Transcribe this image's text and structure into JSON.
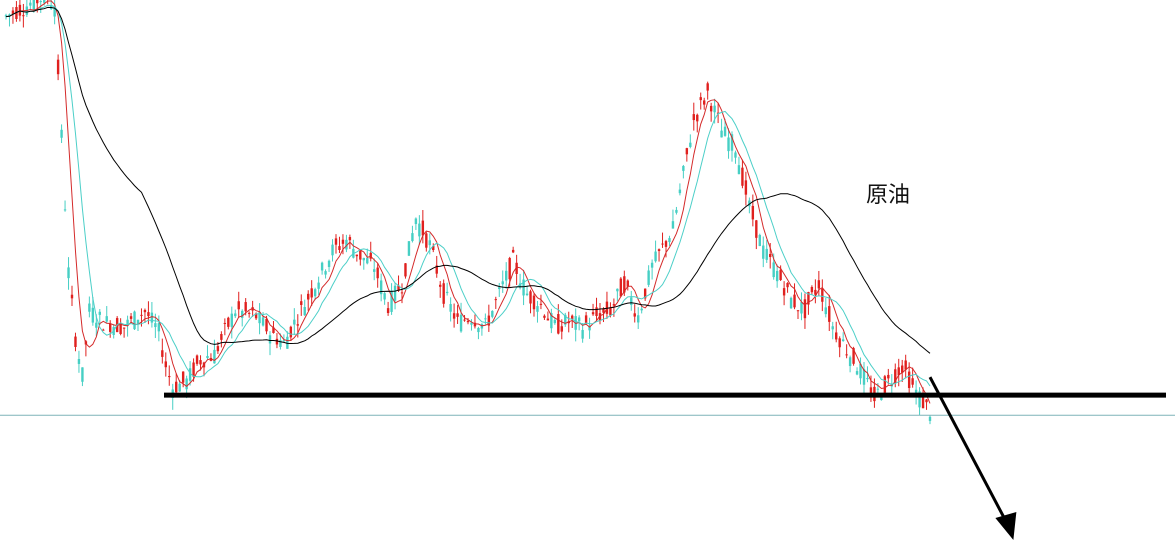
{
  "chart_data": {
    "type": "candlestick",
    "title": "",
    "xlabel": "",
    "ylabel": "",
    "annotation": "原油",
    "grid": false,
    "legend": "none",
    "colors": {
      "up": "#e0201e",
      "down": "#46cfc4",
      "ma_fast": "#d42a2a",
      "ma_mid": "#4ccfc8",
      "ma_slow": "#000000",
      "support": "#000000",
      "baseline": "#7fb3b8",
      "arrow": "#000000"
    },
    "ylim": [
      0,
      100
    ],
    "support_level": 27.5,
    "baseline_level": 23.8,
    "projection": {
      "from": {
        "x": 133,
        "y": 27.5
      },
      "to": {
        "x": 145,
        "y": 0
      }
    },
    "price_path": [
      [
        0,
        97
      ],
      [
        3,
        99
      ],
      [
        6,
        101
      ],
      [
        7,
        99
      ],
      [
        8,
        75
      ],
      [
        9,
        50
      ],
      [
        10,
        38
      ],
      [
        11,
        31
      ],
      [
        12,
        43
      ],
      [
        14,
        41
      ],
      [
        17,
        40
      ],
      [
        20,
        43
      ],
      [
        22,
        39
      ],
      [
        23,
        33
      ],
      [
        24,
        29
      ],
      [
        26,
        30
      ],
      [
        28,
        34
      ],
      [
        30,
        35
      ],
      [
        33,
        43
      ],
      [
        36,
        42
      ],
      [
        38,
        39
      ],
      [
        40,
        37
      ],
      [
        42,
        42
      ],
      [
        45,
        49
      ],
      [
        47,
        54
      ],
      [
        49,
        56
      ],
      [
        51,
        53
      ],
      [
        53,
        51
      ],
      [
        55,
        44
      ],
      [
        57,
        48
      ],
      [
        59,
        60
      ],
      [
        61,
        55
      ],
      [
        63,
        46
      ],
      [
        65,
        41
      ],
      [
        67,
        42
      ],
      [
        69,
        40
      ],
      [
        71,
        46
      ],
      [
        73,
        52
      ],
      [
        75,
        46
      ],
      [
        77,
        44
      ],
      [
        79,
        40
      ],
      [
        81,
        41
      ],
      [
        83,
        40
      ],
      [
        85,
        42
      ],
      [
        87,
        43
      ],
      [
        89,
        48
      ],
      [
        91,
        42
      ],
      [
        93,
        51
      ],
      [
        96,
        58
      ],
      [
        99,
        78
      ],
      [
        101,
        83
      ],
      [
        103,
        76
      ],
      [
        105,
        73
      ],
      [
        107,
        62
      ],
      [
        109,
        54
      ],
      [
        111,
        50
      ],
      [
        113,
        45
      ],
      [
        115,
        43
      ],
      [
        117,
        48
      ],
      [
        119,
        40
      ],
      [
        121,
        36
      ],
      [
        123,
        32
      ],
      [
        125,
        27
      ],
      [
        127,
        30
      ],
      [
        129,
        33
      ],
      [
        131,
        28
      ],
      [
        133,
        24.5
      ]
    ]
  }
}
